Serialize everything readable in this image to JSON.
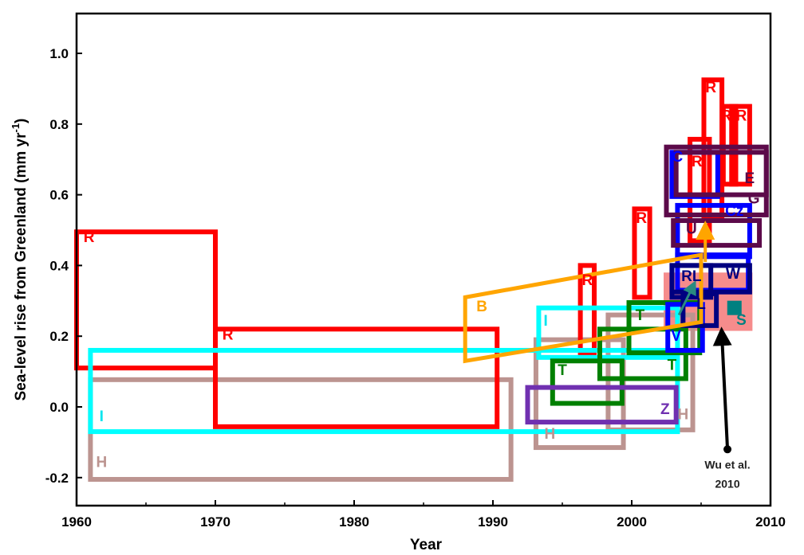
{
  "chart_data": {
    "type": "box-ranges",
    "xlabel": "Year",
    "ylabel": "Sea-level rise from Greenland (mm yr",
    "ylabel_sup": "-1",
    "ylabel_close": ")",
    "xlim": [
      1960,
      2010
    ],
    "ylim": [
      -0.28,
      1.11
    ],
    "xticks": [
      1960,
      1970,
      1980,
      1990,
      2000,
      2010
    ],
    "yticks": [
      -0.2,
      0.0,
      0.2,
      0.4,
      0.6,
      0.8,
      1.0
    ],
    "ytick_labels": [
      "-0.2",
      "0.0",
      "0.2",
      "0.4",
      "0.6",
      "0.8",
      "1.0"
    ],
    "grid": false,
    "colors": {
      "R": "#ff0000",
      "H": "#bc9490",
      "I": "#00ffff",
      "B": "#ffa500",
      "T": "#008000",
      "Z": "#7030b0",
      "blue": "#0000ff",
      "navy": "#000080",
      "G": "#5c0a4a",
      "S_fill": "#f58080",
      "S_marker": "#008080"
    },
    "boxes": [
      {
        "key": "S",
        "x": [
          2002.3,
          2008.7
        ],
        "y": [
          0.215,
          0.38
        ],
        "color": "#f58080",
        "filled": true
      },
      {
        "key": "H",
        "x": [
          1961,
          1991.3
        ],
        "y": [
          -0.205,
          0.077
        ],
        "color": "#bc9490"
      },
      {
        "key": "H",
        "x": [
          1993.1,
          1999.4
        ],
        "y": [
          -0.115,
          0.19
        ],
        "color": "#bc9490"
      },
      {
        "key": "H",
        "x": [
          1998.3,
          2004.4
        ],
        "y": [
          -0.065,
          0.26
        ],
        "color": "#bc9490"
      },
      {
        "key": "R",
        "x": [
          1960,
          1970
        ],
        "y": [
          0.11,
          0.495
        ],
        "color": "#ff0000"
      },
      {
        "key": "R",
        "x": [
          1970,
          1990.3
        ],
        "y": [
          -0.056,
          0.22
        ],
        "color": "#ff0000"
      },
      {
        "key": "R",
        "x": [
          1996.3,
          1997.3
        ],
        "y": [
          0.15,
          0.4
        ],
        "color": "#ff0000"
      },
      {
        "key": "R",
        "x": [
          2000.2,
          2001.3
        ],
        "y": [
          0.31,
          0.56
        ],
        "color": "#ff0000"
      },
      {
        "key": "R",
        "x": [
          2005.2,
          2006.5
        ],
        "y": [
          0.53,
          0.925
        ],
        "color": "#ff0000"
      },
      {
        "key": "R",
        "x": [
          2006.6,
          2007.5
        ],
        "y": [
          0.63,
          0.85
        ],
        "color": "#ff0000"
      },
      {
        "key": "R",
        "x": [
          2007.2,
          2008.5
        ],
        "y": [
          0.63,
          0.85
        ],
        "color": "#ff0000"
      },
      {
        "key": "R",
        "x": [
          2004.2,
          2005.6
        ],
        "y": [
          0.47,
          0.757
        ],
        "color": "#ff0000"
      },
      {
        "key": "I",
        "x": [
          1961,
          2003.3
        ],
        "y": [
          -0.07,
          0.16
        ],
        "color": "#00ffff"
      },
      {
        "key": "I",
        "x": [
          1993.3,
          2003.3
        ],
        "y": [
          0.14,
          0.28
        ],
        "color": "#00ffff"
      },
      {
        "key": "T",
        "x": [
          1994.3,
          1999.3
        ],
        "y": [
          0.01,
          0.13
        ],
        "color": "#008000"
      },
      {
        "key": "T",
        "x": [
          1997.7,
          2003.9
        ],
        "y": [
          0.08,
          0.22
        ],
        "color": "#008000"
      },
      {
        "key": "T",
        "x": [
          1999.8,
          2004.9
        ],
        "y": [
          0.153,
          0.295
        ],
        "color": "#008000"
      },
      {
        "key": "Z",
        "x": [
          1992.5,
          2003.2
        ],
        "y": [
          -0.043,
          0.055
        ],
        "color": "#7030b0"
      },
      {
        "key": "V",
        "x": [
          2002.6,
          2005.1
        ],
        "y": [
          0.16,
          0.29
        ],
        "color": "#0000ff"
      },
      {
        "key": "W",
        "x": [
          2003.3,
          2008.4
        ],
        "y": [
          0.33,
          0.43
        ],
        "color": "#0000ff"
      },
      {
        "key": "Cz",
        "x": [
          2003.3,
          2008.5
        ],
        "y": [
          0.425,
          0.57
        ],
        "color": "#0000ff"
      },
      {
        "key": "C",
        "x": [
          2002.9,
          2006.2
        ],
        "y": [
          0.595,
          0.72
        ],
        "color": "#0000ff"
      },
      {
        "key": "L",
        "x": [
          2003.7,
          2006.1
        ],
        "y": [
          0.23,
          0.32
        ],
        "color": "#000080"
      },
      {
        "key": "RL",
        "x": [
          2002.9,
          2005.7
        ],
        "y": [
          0.31,
          0.4
        ],
        "color": "#000080"
      },
      {
        "key": "W",
        "x": [
          2002.9,
          2008.5
        ],
        "y": [
          0.325,
          0.4
        ],
        "color": "#000080"
      },
      {
        "key": "G",
        "x": [
          2002.5,
          2009.7
        ],
        "y": [
          0.543,
          0.735
        ],
        "color": "#5c0a4a"
      },
      {
        "key": "E",
        "x": [
          2003.2,
          2009.7
        ],
        "y": [
          0.6,
          0.72
        ],
        "color": "#5c0a4a"
      },
      {
        "key": "U",
        "x": [
          2003,
          2009.2
        ],
        "y": [
          0.457,
          0.527
        ],
        "color": "#5c0a4a"
      }
    ],
    "parallelogram_B": {
      "x": [
        1988,
        2005
      ],
      "low": [
        0.13,
        0.24
      ],
      "high": [
        0.31,
        0.43
      ],
      "color": "#ffa500"
    },
    "arrow_B": {
      "x": 2005.3,
      "y": [
        0.41,
        0.5
      ],
      "color": "#ffa500"
    },
    "arrow_RL": {
      "from": [
        2003.4,
        0.26
      ],
      "to": [
        2004.4,
        0.34
      ],
      "color": "#2a8a80"
    },
    "S_marker": {
      "x": 2007.4,
      "y": 0.28
    },
    "labels": [
      {
        "t": "R",
        "x": 1960.9,
        "y": 0.466,
        "c": "#ff0000"
      },
      {
        "t": "R",
        "x": 1970.9,
        "y": 0.19,
        "c": "#ff0000"
      },
      {
        "t": "R",
        "x": 1996.8,
        "y": 0.345,
        "c": "#ff0000"
      },
      {
        "t": "R",
        "x": 2000.7,
        "y": 0.52,
        "c": "#ff0000"
      },
      {
        "t": "R",
        "x": 2005.7,
        "y": 0.89,
        "c": "#ff0000"
      },
      {
        "t": "R",
        "x": 2006.8,
        "y": 0.81,
        "c": "#ff0000"
      },
      {
        "t": "R",
        "x": 2007.9,
        "y": 0.81,
        "c": "#ff0000"
      },
      {
        "t": "R",
        "x": 2004.7,
        "y": 0.68,
        "c": "#ff0000"
      },
      {
        "t": "H",
        "x": 1961.8,
        "y": -0.17,
        "c": "#bc9490"
      },
      {
        "t": "H",
        "x": 1994.1,
        "y": -0.09,
        "c": "#bc9490"
      },
      {
        "t": "H",
        "x": 2003.7,
        "y": -0.035,
        "c": "#bc9490"
      },
      {
        "t": "I",
        "x": 1961.8,
        "y": -0.04,
        "c": "#00e5ee"
      },
      {
        "t": "I",
        "x": 1993.8,
        "y": 0.23,
        "c": "#00e5ee"
      },
      {
        "t": "B",
        "x": 1989.2,
        "y": 0.27,
        "c": "#ffa500"
      },
      {
        "t": "T",
        "x": 1995,
        "y": 0.09,
        "c": "#008000"
      },
      {
        "t": "T",
        "x": 2002.9,
        "y": 0.105,
        "c": "#008000"
      },
      {
        "t": "T",
        "x": 2000.6,
        "y": 0.245,
        "c": "#008000"
      },
      {
        "t": "Z",
        "x": 2002.4,
        "y": -0.02,
        "c": "#7030b0"
      },
      {
        "t": "V",
        "x": 2003.2,
        "y": 0.187,
        "c": "#0000ff"
      },
      {
        "t": "L",
        "x": 2005,
        "y": 0.277,
        "c": "#000080"
      },
      {
        "t": "RL",
        "x": 2004.3,
        "y": 0.356,
        "c": "#000080"
      },
      {
        "t": "W",
        "x": 2007.3,
        "y": 0.363,
        "c": "#000080"
      },
      {
        "t": "S",
        "x": 2007.9,
        "y": 0.232,
        "c": "#008080"
      },
      {
        "t": "U",
        "x": 2004.3,
        "y": 0.49,
        "c": "#5c0a4a"
      },
      {
        "t": "Cz",
        "x": 2007.4,
        "y": 0.54,
        "c": "#0000ff"
      },
      {
        "t": "G",
        "x": 2008.8,
        "y": 0.575,
        "c": "#5c0a4a"
      },
      {
        "t": "E",
        "x": 2008.5,
        "y": 0.633,
        "c": "#5c0a4a"
      },
      {
        "t": "C",
        "x": 2003.3,
        "y": 0.694,
        "c": "#0000ff"
      }
    ],
    "annotation": {
      "line1": "Wu et al.",
      "line2": "2010",
      "arrow_from": [
        2006.9,
        -0.12
      ],
      "arrow_to": [
        2006.5,
        0.2
      ]
    }
  }
}
